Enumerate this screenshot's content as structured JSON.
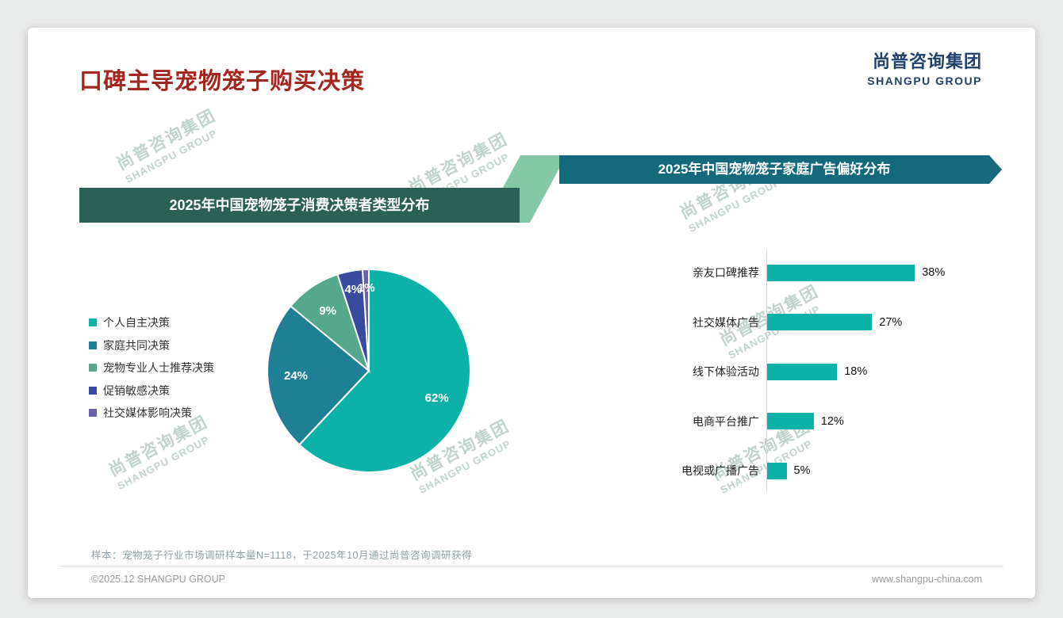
{
  "page": {
    "title": "口碑主导宠物笼子购买决策",
    "logo": {
      "cn": "尚普咨询集团",
      "en": "SHANGPU GROUP"
    },
    "watermark": {
      "cn": "尚普咨询集团",
      "en": "SHANGPU GROUP"
    },
    "footnote": "样本：宠物笼子行业市场调研样本量N=1118，于2025年10月通过尚普咨询调研获得",
    "footer_left": "©2025.12 SHANGPU GROUP",
    "footer_right": "www.shangpu-china.com"
  },
  "colors": {
    "title_red": "#a3261f",
    "logo_navy": "#20406e",
    "banner_left_bg": "#2b6154",
    "banner_right_bg": "#146a7b",
    "connector_green": "#84c8a5",
    "bar_teal": "#0cb2a8"
  },
  "chart_data": [
    {
      "type": "pie",
      "title": "2025年中国宠物笼子消费决策者类型分布",
      "labels": [
        "个人自主决策",
        "家庭共同决策",
        "宠物专业人士推荐决策",
        "促销敏感决策",
        "社交媒体影响决策"
      ],
      "values": [
        62,
        24,
        9,
        4,
        1
      ],
      "unit": "%",
      "colors": [
        "#0cb2a8",
        "#1e7f95",
        "#55a88b",
        "#394b9e",
        "#6a61ab"
      ],
      "legend_position": "left",
      "start_angle_deg": 0,
      "direction": "clockwise",
      "data_labels": [
        "62%",
        "24%",
        "9%",
        "4%",
        "1%"
      ]
    },
    {
      "type": "bar",
      "title": "2025年中国宠物笼子家庭广告偏好分布",
      "categories": [
        "亲友口碑推荐",
        "社交媒体广告",
        "线下体验活动",
        "电商平台推广",
        "电视或广播广告"
      ],
      "values": [
        38,
        27,
        18,
        12,
        5
      ],
      "unit": "%",
      "orientation": "horizontal",
      "bar_color": "#0cb2a8",
      "xlim": [
        0,
        40
      ],
      "value_labels": [
        "38%",
        "27%",
        "18%",
        "12%",
        "5%"
      ]
    }
  ]
}
